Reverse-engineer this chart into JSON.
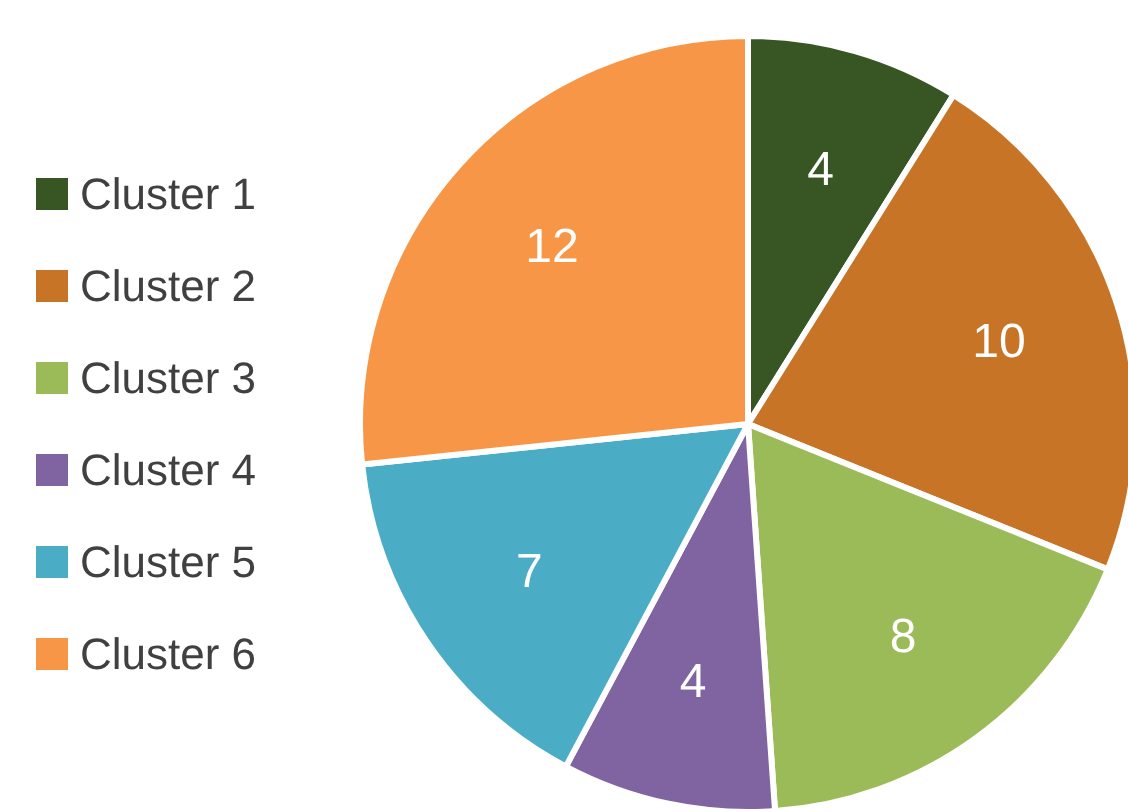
{
  "chart_data": {
    "type": "pie",
    "categories": [
      "Cluster 1",
      "Cluster 2",
      "Cluster 3",
      "Cluster 4",
      "Cluster 5",
      "Cluster 6"
    ],
    "values": [
      4,
      10,
      8,
      4,
      7,
      12
    ],
    "colors": [
      "#375623",
      "#c87427",
      "#9bbb59",
      "#8064a2",
      "#4bacc6",
      "#f79646"
    ],
    "data_labels": true,
    "legend": "left"
  }
}
